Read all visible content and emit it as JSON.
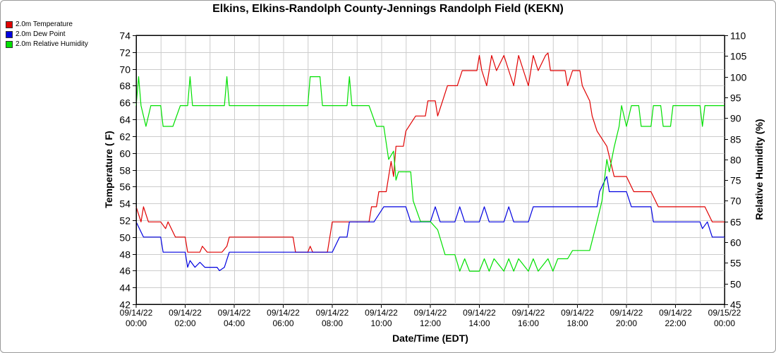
{
  "chart_data": {
    "type": "line",
    "title": "Elkins, Elkins-Randolph County-Jennings Randolph Field (KEKN)",
    "xlabel": "Date/Time (EDT)",
    "ylabel_left": "Temperature ( F)",
    "ylabel_right": "Relative Humidity (%)",
    "ylim_left": [
      42,
      74
    ],
    "ylim_right": [
      45,
      110
    ],
    "y_ticks_left": [
      "42",
      "44",
      "46",
      "48",
      "50",
      "52",
      "54",
      "56",
      "58",
      "60",
      "62",
      "64",
      "66",
      "68",
      "70",
      "72",
      "74"
    ],
    "y_ticks_right": [
      "45",
      "50",
      "55",
      "60",
      "65",
      "70",
      "75",
      "80",
      "85",
      "90",
      "95",
      "100",
      "105",
      "110"
    ],
    "xlim_hours": [
      0,
      24
    ],
    "x_ticks": [
      {
        "date": "09/14/22",
        "time": "00:00"
      },
      {
        "date": "09/14/22",
        "time": "02:00"
      },
      {
        "date": "09/14/22",
        "time": "04:00"
      },
      {
        "date": "09/14/22",
        "time": "06:00"
      },
      {
        "date": "09/14/22",
        "time": "08:00"
      },
      {
        "date": "09/14/22",
        "time": "10:00"
      },
      {
        "date": "09/14/22",
        "time": "12:00"
      },
      {
        "date": "09/14/22",
        "time": "14:00"
      },
      {
        "date": "09/14/22",
        "time": "16:00"
      },
      {
        "date": "09/14/22",
        "time": "18:00"
      },
      {
        "date": "09/14/22",
        "time": "20:00"
      },
      {
        "date": "09/14/22",
        "time": "22:00"
      },
      {
        "date": "09/15/22",
        "time": "00:00"
      }
    ],
    "grid": true,
    "legend_position": "top-left",
    "series": [
      {
        "name": "2.0m Temperature",
        "color": "#e00000",
        "axis": "left",
        "points": [
          [
            0,
            53.6
          ],
          [
            0.2,
            51.8
          ],
          [
            0.3,
            53.6
          ],
          [
            0.5,
            51.8
          ],
          [
            1.0,
            51.8
          ],
          [
            1.2,
            51.0
          ],
          [
            1.3,
            51.8
          ],
          [
            1.6,
            50.0
          ],
          [
            2.0,
            50.0
          ],
          [
            2.1,
            48.2
          ],
          [
            2.6,
            48.2
          ],
          [
            2.7,
            48.9
          ],
          [
            2.9,
            48.2
          ],
          [
            3.5,
            48.2
          ],
          [
            3.7,
            48.9
          ],
          [
            3.8,
            50.0
          ],
          [
            6.4,
            50.0
          ],
          [
            6.5,
            48.2
          ],
          [
            7.0,
            48.2
          ],
          [
            7.1,
            48.9
          ],
          [
            7.2,
            48.2
          ],
          [
            7.8,
            48.2
          ],
          [
            8.0,
            51.8
          ],
          [
            9.5,
            51.8
          ],
          [
            9.6,
            53.6
          ],
          [
            9.8,
            53.6
          ],
          [
            9.9,
            55.4
          ],
          [
            10.2,
            55.4
          ],
          [
            10.3,
            57.2
          ],
          [
            10.4,
            59.0
          ],
          [
            10.5,
            57.2
          ],
          [
            10.6,
            60.8
          ],
          [
            10.9,
            60.8
          ],
          [
            11.0,
            62.6
          ],
          [
            11.4,
            64.4
          ],
          [
            11.8,
            64.4
          ],
          [
            11.9,
            66.2
          ],
          [
            12.2,
            66.2
          ],
          [
            12.3,
            64.4
          ],
          [
            12.5,
            66.2
          ],
          [
            12.7,
            68.0
          ],
          [
            13.1,
            68.0
          ],
          [
            13.3,
            69.8
          ],
          [
            13.9,
            69.8
          ],
          [
            14.0,
            71.6
          ],
          [
            14.1,
            69.8
          ],
          [
            14.3,
            68.0
          ],
          [
            14.5,
            71.6
          ],
          [
            14.7,
            69.8
          ],
          [
            15.0,
            71.6
          ],
          [
            15.2,
            69.8
          ],
          [
            15.4,
            68.0
          ],
          [
            15.6,
            71.6
          ],
          [
            15.8,
            69.8
          ],
          [
            16.0,
            68.0
          ],
          [
            16.2,
            71.6
          ],
          [
            16.4,
            69.8
          ],
          [
            16.7,
            71.6
          ],
          [
            16.8,
            71.9
          ],
          [
            16.9,
            69.8
          ],
          [
            17.5,
            69.8
          ],
          [
            17.6,
            68.0
          ],
          [
            17.8,
            69.8
          ],
          [
            18.1,
            69.8
          ],
          [
            18.2,
            68.0
          ],
          [
            18.5,
            66.2
          ],
          [
            18.6,
            64.4
          ],
          [
            18.8,
            62.6
          ],
          [
            19.2,
            60.8
          ],
          [
            19.5,
            57.2
          ],
          [
            20.0,
            57.2
          ],
          [
            20.3,
            55.4
          ],
          [
            21.0,
            55.4
          ],
          [
            21.3,
            53.6
          ],
          [
            23.2,
            53.6
          ],
          [
            23.5,
            51.8
          ],
          [
            24.0,
            51.8
          ]
        ]
      },
      {
        "name": "2.0m Dew Point",
        "color": "#0000e0",
        "axis": "left",
        "points": [
          [
            0,
            51.8
          ],
          [
            0.3,
            50.0
          ],
          [
            1.0,
            50.0
          ],
          [
            1.1,
            48.2
          ],
          [
            2.0,
            48.2
          ],
          [
            2.1,
            46.4
          ],
          [
            2.2,
            47.2
          ],
          [
            2.4,
            46.4
          ],
          [
            2.6,
            47.0
          ],
          [
            2.8,
            46.4
          ],
          [
            3.3,
            46.4
          ],
          [
            3.4,
            46.0
          ],
          [
            3.6,
            46.4
          ],
          [
            3.8,
            48.2
          ],
          [
            8.0,
            48.2
          ],
          [
            8.3,
            50.0
          ],
          [
            8.6,
            50.0
          ],
          [
            8.7,
            51.8
          ],
          [
            9.7,
            51.8
          ],
          [
            10.1,
            53.6
          ],
          [
            10.4,
            53.6
          ],
          [
            10.6,
            53.6
          ],
          [
            11.0,
            53.6
          ],
          [
            11.2,
            51.8
          ],
          [
            12.0,
            51.8
          ],
          [
            12.2,
            53.6
          ],
          [
            12.4,
            51.8
          ],
          [
            13.0,
            51.8
          ],
          [
            13.2,
            53.6
          ],
          [
            13.4,
            51.8
          ],
          [
            14.0,
            51.8
          ],
          [
            14.2,
            53.6
          ],
          [
            14.4,
            51.8
          ],
          [
            15.0,
            51.8
          ],
          [
            15.2,
            53.6
          ],
          [
            15.4,
            51.8
          ],
          [
            16.0,
            51.8
          ],
          [
            16.2,
            53.6
          ],
          [
            17.0,
            53.6
          ],
          [
            18.8,
            53.6
          ],
          [
            18.9,
            55.4
          ],
          [
            19.2,
            57.2
          ],
          [
            19.3,
            55.4
          ],
          [
            20.0,
            55.4
          ],
          [
            20.2,
            53.6
          ],
          [
            21.0,
            53.6
          ],
          [
            21.1,
            51.8
          ],
          [
            23.0,
            51.8
          ],
          [
            23.1,
            51.0
          ],
          [
            23.3,
            51.8
          ],
          [
            23.5,
            50.0
          ],
          [
            24.0,
            50.0
          ]
        ]
      },
      {
        "name": "2.0m Relative Humidity",
        "color": "#00e000",
        "axis": "right",
        "points": [
          [
            0,
            93
          ],
          [
            0.1,
            100
          ],
          [
            0.2,
            93
          ],
          [
            0.4,
            88
          ],
          [
            0.6,
            93
          ],
          [
            1.0,
            93
          ],
          [
            1.1,
            88
          ],
          [
            1.5,
            88
          ],
          [
            1.8,
            93
          ],
          [
            2.1,
            93
          ],
          [
            2.2,
            100
          ],
          [
            2.3,
            93
          ],
          [
            3.6,
            93
          ],
          [
            3.7,
            100
          ],
          [
            3.8,
            93
          ],
          [
            4.5,
            93
          ],
          [
            7.0,
            93
          ],
          [
            7.1,
            100
          ],
          [
            7.5,
            100
          ],
          [
            7.6,
            93
          ],
          [
            8.6,
            93
          ],
          [
            8.7,
            100
          ],
          [
            8.8,
            93
          ],
          [
            9.5,
            93
          ],
          [
            9.8,
            88
          ],
          [
            10.1,
            88
          ],
          [
            10.3,
            80
          ],
          [
            10.5,
            82
          ],
          [
            10.6,
            75
          ],
          [
            10.7,
            77
          ],
          [
            11.2,
            77
          ],
          [
            11.3,
            70
          ],
          [
            11.6,
            65
          ],
          [
            12.0,
            65
          ],
          [
            12.3,
            63
          ],
          [
            12.6,
            57
          ],
          [
            13.0,
            57
          ],
          [
            13.2,
            53
          ],
          [
            13.4,
            56
          ],
          [
            13.6,
            53
          ],
          [
            14.0,
            53
          ],
          [
            14.2,
            56
          ],
          [
            14.4,
            53
          ],
          [
            14.6,
            56
          ],
          [
            15.0,
            53
          ],
          [
            15.2,
            56
          ],
          [
            15.4,
            53
          ],
          [
            15.6,
            56
          ],
          [
            16.0,
            53
          ],
          [
            16.2,
            56
          ],
          [
            16.4,
            53
          ],
          [
            16.8,
            56
          ],
          [
            17.0,
            53
          ],
          [
            17.2,
            56
          ],
          [
            17.6,
            56
          ],
          [
            17.8,
            58
          ],
          [
            18.0,
            58
          ],
          [
            18.5,
            58
          ],
          [
            18.8,
            65
          ],
          [
            19.0,
            70
          ],
          [
            19.2,
            80
          ],
          [
            19.3,
            77
          ],
          [
            19.5,
            83
          ],
          [
            19.7,
            88
          ],
          [
            19.8,
            93
          ],
          [
            20.0,
            88
          ],
          [
            20.2,
            93
          ],
          [
            20.5,
            93
          ],
          [
            20.6,
            88
          ],
          [
            21.0,
            88
          ],
          [
            21.1,
            93
          ],
          [
            21.4,
            93
          ],
          [
            21.5,
            88
          ],
          [
            21.8,
            88
          ],
          [
            21.9,
            93
          ],
          [
            23.0,
            93
          ],
          [
            23.1,
            88
          ],
          [
            23.2,
            93
          ],
          [
            24.0,
            93
          ]
        ]
      }
    ]
  }
}
